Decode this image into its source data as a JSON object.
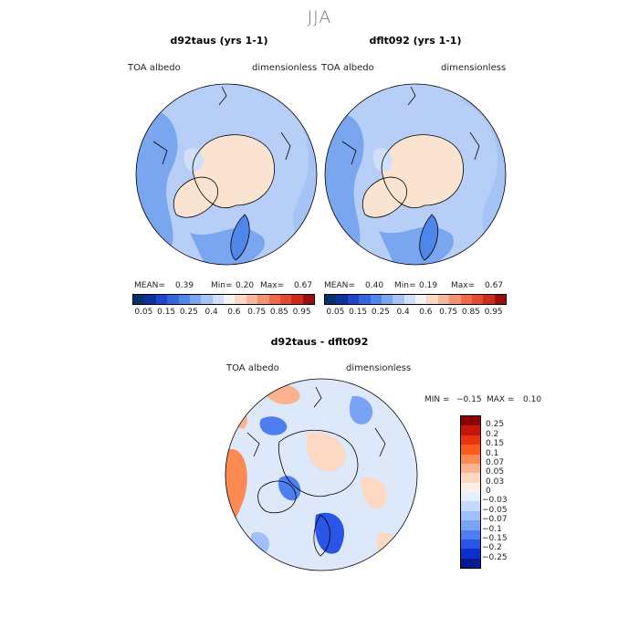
{
  "season": "JJA",
  "panels": [
    {
      "title": "d92taus (yrs 1-1)",
      "field": "TOA albedo",
      "units": "dimensionless",
      "mean_label": "MEAN=",
      "mean": "0.39",
      "min_label": "Min=",
      "min": "0.20",
      "max_label": "Max=",
      "max": "0.67"
    },
    {
      "title": "dflt092 (yrs 1-1)",
      "field": "TOA albedo",
      "units": "dimensionless",
      "mean_label": "MEAN=",
      "mean": "0.40",
      "min_label": "Min=",
      "min": "0.19",
      "max_label": "Max=",
      "max": "0.67"
    }
  ],
  "abs_colorbar": {
    "colors": [
      "#08306b",
      "#10319b",
      "#1f46c8",
      "#3466dd",
      "#4f86ea",
      "#7aa6f0",
      "#a5c3f4",
      "#cfe0f8",
      "#f4f4f4",
      "#fcd9c3",
      "#f8b79c",
      "#f4916f",
      "#ef6a4b",
      "#e44a2f",
      "#cc2b1a",
      "#9b0e0e"
    ],
    "tick_labels": [
      "0.05",
      "0.15",
      "0.25",
      "0.4",
      "0.6",
      "0.75",
      "0.85",
      "0.95"
    ]
  },
  "diff_panel": {
    "title": "d92taus - dflt092",
    "field": "TOA albedo",
    "units": "dimensionless",
    "min_label": "MIN =",
    "min": "−0.15",
    "max_label": "MAX =",
    "max": "0.10"
  },
  "diff_colorbar": {
    "colors": [
      "#8b0000",
      "#c8150c",
      "#e8340f",
      "#fb5c1e",
      "#fc8a52",
      "#fdb38f",
      "#fdd8c2",
      "#fef0e6",
      "#e6efff",
      "#c4d9ff",
      "#a0c0fb",
      "#7aa3f6",
      "#4f7ef0",
      "#2a55e6",
      "#0f2fca",
      "#061a8f"
    ],
    "labels": [
      "0.25",
      "0.2",
      "0.15",
      "0.1",
      "0.07",
      "0.05",
      "0.03",
      "0",
      "−0.03",
      "−0.05",
      "−0.07",
      "−0.1",
      "−0.15",
      "−0.2",
      "−0.25"
    ]
  },
  "map_colors": {
    "ocean_abs": "#b7cff7",
    "land_abs": "#fbe3d2",
    "ocean_diff": "#dde8fb",
    "coast": "#000000"
  }
}
